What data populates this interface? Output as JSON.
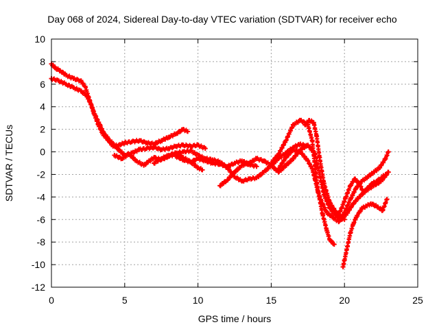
{
  "chart_data": {
    "type": "scatter",
    "title": "Day 068 of 2024, Sidereal Day-to-day VTEC variation (SDTVAR) for receiver echo",
    "xlabel": "GPS time / hours",
    "ylabel": "SDTVAR / TECUs",
    "xlim": [
      0,
      25
    ],
    "ylim": [
      -12,
      10
    ],
    "xticks": [
      0,
      5,
      10,
      15,
      20,
      25
    ],
    "yticks": [
      -12,
      -10,
      -8,
      -6,
      -4,
      -2,
      0,
      2,
      4,
      6,
      8,
      10
    ],
    "grid": true,
    "marker": "+",
    "color": "#ff0000",
    "series": [
      {
        "name": "a",
        "x": [
          0.0,
          0.3,
          0.6,
          1.0,
          1.5,
          2.0,
          2.3,
          2.6,
          2.9,
          3.2,
          3.5,
          3.9,
          4.2,
          4.6,
          5.0,
          5.5,
          6.0,
          6.5,
          7.0,
          7.5,
          8.0,
          8.5,
          9.0,
          9.3
        ],
        "y": [
          7.8,
          7.4,
          7.2,
          6.8,
          6.5,
          6.3,
          5.8,
          4.6,
          3.4,
          2.4,
          1.6,
          1.0,
          0.5,
          0.6,
          0.8,
          0.9,
          1.0,
          0.8,
          0.7,
          1.0,
          1.3,
          1.6,
          2.0,
          1.8
        ]
      },
      {
        "name": "b",
        "x": [
          0.0,
          0.5,
          1.0,
          1.5,
          2.0,
          2.4,
          2.7,
          3.0,
          3.3,
          3.6,
          4.0,
          4.5,
          5.0,
          5.5,
          6.0,
          6.5,
          7.0,
          7.5,
          8.0,
          8.5,
          9.0,
          9.5,
          10.0,
          10.5
        ],
        "y": [
          6.5,
          6.3,
          6.0,
          5.7,
          5.4,
          5.0,
          4.2,
          3.2,
          2.4,
          1.6,
          1.0,
          0.3,
          -0.3,
          -0.1,
          0.2,
          0.3,
          0.4,
          0.2,
          0.3,
          0.5,
          0.6,
          0.5,
          0.6,
          0.3
        ]
      },
      {
        "name": "c",
        "x": [
          4.3,
          4.8,
          5.3,
          5.8,
          6.3,
          6.6,
          7.0,
          7.5,
          8.0,
          8.5,
          9.0,
          9.5,
          10.0,
          10.3
        ],
        "y": [
          -0.3,
          -0.6,
          -0.2,
          -0.8,
          -1.2,
          -0.9,
          -0.5,
          -0.7,
          -0.4,
          -0.2,
          -0.5,
          -0.9,
          -1.4,
          -1.6
        ]
      },
      {
        "name": "d",
        "x": [
          7.0,
          7.5,
          8.0,
          8.5,
          9.0,
          9.5,
          10.0,
          10.5,
          11.0,
          11.5,
          12.0,
          12.5,
          13.0,
          13.5,
          14.0,
          14.5,
          15.0,
          15.5,
          16.0,
          16.5,
          17.0,
          17.4
        ],
        "y": [
          -1.0,
          -0.6,
          -0.3,
          -0.1,
          0.0,
          0.1,
          -0.3,
          -0.6,
          -0.7,
          -0.9,
          -1.4,
          -2.2,
          -2.6,
          -2.4,
          -2.3,
          -1.8,
          -1.2,
          -0.6,
          -0.1,
          0.4,
          0.7,
          0.5
        ]
      },
      {
        "name": "e",
        "x": [
          8.5,
          9.0,
          9.5,
          10.0,
          10.5,
          11.0,
          11.5,
          12.0,
          12.5,
          13.0,
          13.5,
          14.0
        ],
        "y": [
          -0.4,
          -0.7,
          -0.9,
          -0.6,
          -0.8,
          -1.0,
          -1.1,
          -1.3,
          -1.0,
          -0.8,
          -1.1,
          -1.3
        ]
      },
      {
        "name": "f",
        "x": [
          11.5,
          12.0,
          12.5,
          13.0,
          13.5,
          14.0,
          14.5,
          15.0,
          15.5,
          16.0,
          16.5,
          17.0,
          17.5,
          18.0,
          18.3,
          18.6,
          19.0,
          19.4,
          19.8,
          20.2,
          20.6,
          21.0,
          21.5,
          22.0,
          22.5,
          23.0
        ],
        "y": [
          -3.0,
          -2.5,
          -1.8,
          -1.2,
          -1.0,
          -0.6,
          -0.8,
          -1.2,
          -1.8,
          -1.2,
          -0.6,
          0.2,
          0.6,
          -0.2,
          -2.0,
          -3.8,
          -5.0,
          -5.6,
          -6.0,
          -5.4,
          -4.6,
          -4.0,
          -3.4,
          -3.0,
          -2.6,
          -1.8
        ]
      },
      {
        "name": "g",
        "x": [
          15.0,
          15.5,
          16.0,
          16.5,
          17.0,
          17.5,
          17.8,
          18.0,
          18.2,
          18.5,
          18.8,
          19.0,
          19.3
        ],
        "y": [
          -1.0,
          -0.2,
          1.0,
          2.4,
          2.8,
          2.4,
          1.0,
          -1.5,
          -3.5,
          -5.5,
          -7.0,
          -7.8,
          -8.2
        ]
      },
      {
        "name": "h",
        "x": [
          15.5,
          16.0,
          16.5,
          17.0,
          17.5,
          17.8,
          18.0,
          18.2,
          18.5,
          18.8,
          19.2,
          19.6,
          20.0,
          20.4,
          20.8,
          21.2,
          21.6,
          22.0,
          22.4,
          22.8,
          23.0
        ],
        "y": [
          -1.5,
          -0.5,
          0.2,
          0.0,
          -0.8,
          -1.5,
          -2.5,
          -3.6,
          -4.6,
          -5.4,
          -5.8,
          -6.2,
          -5.4,
          -4.2,
          -3.2,
          -2.6,
          -2.2,
          -1.8,
          -1.4,
          -0.6,
          0.0
        ]
      },
      {
        "name": "i",
        "x": [
          17.3,
          17.6,
          17.9,
          18.1,
          18.3,
          18.6,
          19.0,
          19.5,
          20.0
        ],
        "y": [
          2.4,
          2.8,
          2.6,
          1.4,
          -0.5,
          -2.8,
          -4.5,
          -5.5,
          -6.0
        ]
      },
      {
        "name": "j",
        "x": [
          19.9,
          20.0,
          20.2,
          20.4,
          20.6,
          20.8,
          21.0,
          21.2,
          21.5,
          21.8,
          22.0,
          22.3,
          22.6,
          22.9
        ],
        "y": [
          -10.2,
          -9.6,
          -8.4,
          -7.2,
          -6.4,
          -5.8,
          -5.4,
          -5.0,
          -4.8,
          -4.6,
          -4.7,
          -4.9,
          -5.2,
          -4.2
        ]
      },
      {
        "name": "k",
        "x": [
          19.5,
          19.8,
          20.1,
          20.4,
          20.7,
          21.0,
          21.3,
          21.6,
          21.9,
          22.2,
          22.5,
          22.8
        ],
        "y": [
          -5.8,
          -5.0,
          -4.0,
          -3.0,
          -2.4,
          -2.8,
          -3.6,
          -3.2,
          -2.8,
          -2.6,
          -2.3,
          -2.0
        ]
      }
    ]
  }
}
